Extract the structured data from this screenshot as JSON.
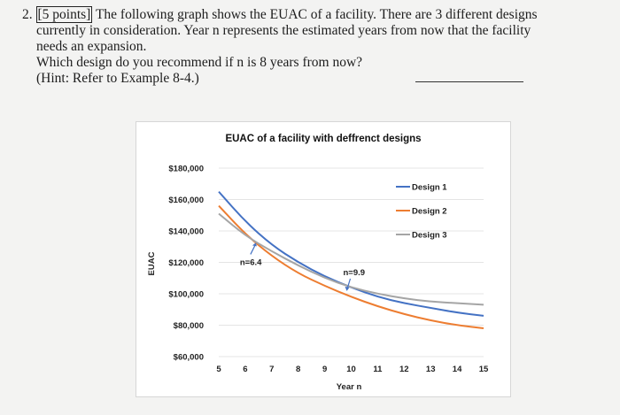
{
  "question": {
    "number": "2.",
    "points": "[5 points]",
    "line1": "The following graph shows the EUAC of a facility. There are 3 different designs",
    "line2": "currently in consideration. Year n represents the estimated years from now that the facility",
    "line3": "needs an expansion.",
    "line4": "Which design do you recommend if n is 8 years from now?",
    "hint": "(Hint: Refer to Example 8-4.)"
  },
  "chart_data": {
    "type": "line",
    "title": "EUAC of a facility with deffrenct designs",
    "xlabel": "Year n",
    "ylabel": "EUAC",
    "x": [
      5,
      6,
      7,
      8,
      9,
      10,
      11,
      12,
      13,
      14,
      15
    ],
    "x_ticks": [
      "5",
      "6",
      "7",
      "8",
      "9",
      "10",
      "11",
      "12",
      "13",
      "14",
      "15"
    ],
    "y_ticks": [
      "$60,000",
      "$80,000",
      "$100,000",
      "$120,000",
      "$140,000",
      "$160,000",
      "$180,000"
    ],
    "y_tick_values": [
      60000,
      80000,
      100000,
      120000,
      140000,
      160000,
      180000
    ],
    "ylim": [
      60000,
      180000
    ],
    "xlim": [
      5,
      15
    ],
    "grid": "horizontal",
    "legend_position": "top-right",
    "series": [
      {
        "name": "Design 1",
        "color": "#4472c4",
        "values": [
          165000,
          146000,
          131000,
          120000,
          111000,
          104000,
          98000,
          94000,
          91000,
          88000,
          86000
        ]
      },
      {
        "name": "Design 2",
        "color": "#ed7d31",
        "values": [
          156000,
          138000,
          124000,
          113000,
          105000,
          98000,
          92000,
          87000,
          83000,
          80000,
          78000
        ]
      },
      {
        "name": "Design 3",
        "color": "#a5a5a5",
        "values": [
          151000,
          137000,
          127000,
          118000,
          110000,
          104000,
          100000,
          97000,
          95000,
          94000,
          93000
        ]
      }
    ],
    "annotations": [
      {
        "label": "n=6.4",
        "x": 6.4,
        "y": 133000
      },
      {
        "label": "n=9.9",
        "x": 9.9,
        "y": 104000
      }
    ]
  }
}
